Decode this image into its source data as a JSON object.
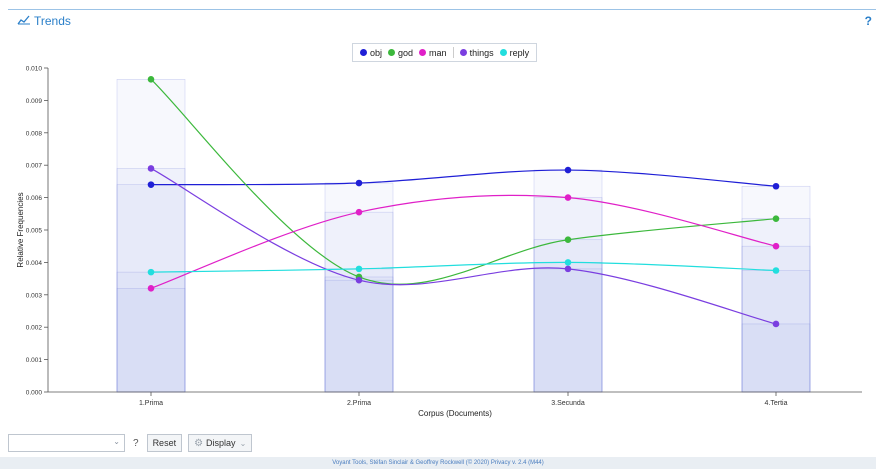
{
  "header": {
    "title": "Trends",
    "help": "?"
  },
  "legend": [
    {
      "label": "obj",
      "color": "#1f1fd6"
    },
    {
      "label": "god",
      "color": "#3cb83c"
    },
    {
      "label": "man",
      "color": "#e020c8"
    },
    {
      "label": "things",
      "color": "#7a3ee0"
    },
    {
      "label": "reply",
      "color": "#22dede"
    }
  ],
  "chart_data": {
    "type": "line",
    "categories": [
      "1.Prima",
      "2.Prima",
      "3.Secunda",
      "4.Tertia"
    ],
    "series": [
      {
        "name": "obj",
        "color": "#1f1fd6",
        "values": [
          0.0064,
          0.00645,
          0.00685,
          0.00635
        ]
      },
      {
        "name": "god",
        "color": "#3cb83c",
        "values": [
          0.00965,
          0.00355,
          0.0047,
          0.00535
        ]
      },
      {
        "name": "man",
        "color": "#e020c8",
        "values": [
          0.0032,
          0.00555,
          0.006,
          0.0045
        ]
      },
      {
        "name": "things",
        "color": "#7a3ee0",
        "values": [
          0.0069,
          0.00345,
          0.0038,
          0.0021
        ]
      },
      {
        "name": "reply",
        "color": "#22dede",
        "values": [
          0.0037,
          0.0038,
          0.004,
          0.00375
        ]
      }
    ],
    "xlabel": "Corpus (Documents)",
    "ylabel": "Relative Frequencies",
    "ylim": [
      0,
      0.01
    ],
    "yticks": [
      "0.000",
      "0.001",
      "0.002",
      "0.003",
      "0.004",
      "0.005",
      "0.006",
      "0.007",
      "0.008",
      "0.009",
      "0.010"
    ],
    "grid": false,
    "legend_position": "top-center"
  },
  "footer": {
    "help": "?",
    "reset_label": "Reset",
    "display_label": "Display",
    "credits": "Voyant Tools, Stéfan Sinclair & Geoffrey Rockwell (© 2020) Privacy v. 2.4 (M44)"
  }
}
